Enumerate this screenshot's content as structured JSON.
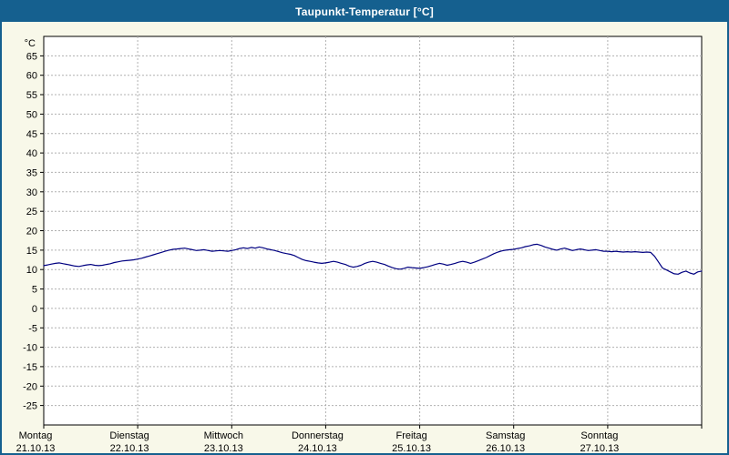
{
  "window": {
    "title": "Taupunkt-Temperatur [°C]"
  },
  "colors": {
    "titlebar": "#15608f",
    "frame": "#15608f",
    "background": "#f8f8e9",
    "plot_bg": "#ffffff",
    "plot_border": "#000000",
    "grid": "#b0b0b0",
    "axis_text": "#000000",
    "line": "#000080"
  },
  "chart_data": {
    "type": "line",
    "title": "Taupunkt-Temperatur [°C]",
    "ylabel": "°C",
    "ylim": [
      -30,
      70
    ],
    "y_ticks": [
      65,
      60,
      55,
      50,
      45,
      40,
      35,
      30,
      25,
      20,
      15,
      10,
      5,
      0,
      -5,
      -10,
      -15,
      -20,
      -25
    ],
    "grid": true,
    "x_unit": "hours",
    "x_range": [
      0,
      168
    ],
    "x_days": [
      {
        "name": "Montag",
        "date": "21.10.13"
      },
      {
        "name": "Dienstag",
        "date": "22.10.13"
      },
      {
        "name": "Mittwoch",
        "date": "23.10.13"
      },
      {
        "name": "Donnerstag",
        "date": "24.10.13"
      },
      {
        "name": "Freitag",
        "date": "25.10.13"
      },
      {
        "name": "Samstag",
        "date": "26.10.13"
      },
      {
        "name": "Sonntag",
        "date": "27.10.13"
      }
    ],
    "series": [
      {
        "name": "Taupunkt",
        "x_step_hours": 1,
        "values": [
          11.0,
          11.2,
          11.4,
          11.6,
          11.7,
          11.5,
          11.3,
          11.1,
          10.9,
          10.8,
          11.0,
          11.2,
          11.3,
          11.1,
          11.0,
          11.1,
          11.3,
          11.5,
          11.8,
          12.0,
          12.2,
          12.3,
          12.4,
          12.5,
          12.7,
          12.9,
          13.2,
          13.5,
          13.8,
          14.1,
          14.4,
          14.7,
          15.0,
          15.2,
          15.3,
          15.4,
          15.5,
          15.3,
          15.1,
          14.9,
          15.0,
          15.1,
          14.9,
          14.7,
          14.8,
          14.9,
          14.8,
          14.7,
          14.9,
          15.1,
          15.4,
          15.6,
          15.4,
          15.7,
          15.5,
          15.8,
          15.6,
          15.3,
          15.1,
          14.9,
          14.6,
          14.3,
          14.1,
          13.9,
          13.6,
          13.1,
          12.6,
          12.3,
          12.1,
          11.9,
          11.7,
          11.6,
          11.7,
          11.9,
          12.1,
          11.9,
          11.6,
          11.3,
          10.9,
          10.6,
          10.8,
          11.1,
          11.6,
          11.9,
          12.1,
          11.9,
          11.6,
          11.3,
          10.9,
          10.5,
          10.2,
          10.1,
          10.3,
          10.6,
          10.5,
          10.4,
          10.3,
          10.5,
          10.7,
          11.0,
          11.3,
          11.6,
          11.4,
          11.1,
          11.3,
          11.6,
          11.9,
          12.1,
          11.9,
          11.6,
          11.9,
          12.3,
          12.7,
          13.1,
          13.6,
          14.1,
          14.5,
          14.8,
          15.0,
          15.1,
          15.2,
          15.4,
          15.6,
          15.9,
          16.1,
          16.4,
          16.5,
          16.2,
          15.8,
          15.5,
          15.2,
          15.0,
          15.3,
          15.5,
          15.2,
          14.9,
          15.1,
          15.3,
          15.1,
          14.9,
          15.0,
          15.1,
          14.9,
          14.7,
          14.7,
          14.6,
          14.7,
          14.6,
          14.5,
          14.6,
          14.5,
          14.6,
          14.5,
          14.4,
          14.5,
          14.4,
          13.4,
          11.9,
          10.4,
          9.9,
          9.4,
          8.9,
          8.8,
          9.3,
          9.6,
          9.1,
          8.8,
          9.4,
          9.6
        ]
      }
    ]
  }
}
